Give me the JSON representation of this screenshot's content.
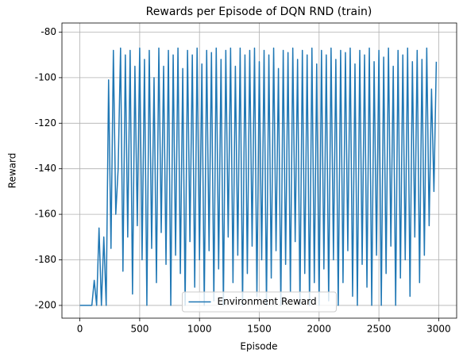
{
  "chart_data": {
    "type": "line",
    "title": "Rewards per Episode of DQN RND (train)",
    "xlabel": "Episode",
    "ylabel": "Reward",
    "x": [
      0,
      20,
      40,
      60,
      80,
      100,
      120,
      140,
      160,
      180,
      200,
      220,
      240,
      260,
      280,
      300,
      320,
      340,
      360,
      380,
      400,
      420,
      440,
      460,
      480,
      500,
      520,
      540,
      560,
      580,
      600,
      620,
      640,
      660,
      680,
      700,
      720,
      740,
      760,
      780,
      800,
      820,
      840,
      860,
      880,
      900,
      920,
      940,
      960,
      980,
      1000,
      1020,
      1040,
      1060,
      1080,
      1100,
      1120,
      1140,
      1160,
      1180,
      1200,
      1220,
      1240,
      1260,
      1280,
      1300,
      1320,
      1340,
      1360,
      1380,
      1400,
      1420,
      1440,
      1460,
      1480,
      1500,
      1520,
      1540,
      1560,
      1580,
      1600,
      1620,
      1640,
      1660,
      1680,
      1700,
      1720,
      1740,
      1760,
      1780,
      1800,
      1820,
      1840,
      1860,
      1880,
      1900,
      1920,
      1940,
      1960,
      1980,
      2000,
      2020,
      2040,
      2060,
      2080,
      2100,
      2120,
      2140,
      2160,
      2180,
      2200,
      2220,
      2240,
      2260,
      2280,
      2300,
      2320,
      2340,
      2360,
      2380,
      2400,
      2420,
      2440,
      2460,
      2480,
      2500,
      2520,
      2540,
      2560,
      2580,
      2600,
      2620,
      2640,
      2660,
      2680,
      2700,
      2720,
      2740,
      2760,
      2780,
      2800,
      2820,
      2840,
      2860,
      2880,
      2900,
      2920,
      2940,
      2960,
      2980
    ],
    "series": [
      {
        "name": "Environment Reward",
        "color": "#1f77b4",
        "values": [
          -200,
          -200,
          -200,
          -200,
          -200,
          -200,
          -189,
          -200,
          -166,
          -200,
          -170,
          -200,
          -101,
          -175,
          -88,
          -160,
          -140,
          -87,
          -185,
          -90,
          -170,
          -88,
          -195,
          -95,
          -165,
          -87,
          -180,
          -92,
          -200,
          -88,
          -175,
          -100,
          -190,
          -87,
          -168,
          -95,
          -182,
          -88,
          -200,
          -90,
          -178,
          -87,
          -186,
          -96,
          -200,
          -88,
          -172,
          -90,
          -192,
          -87,
          -180,
          -94,
          -200,
          -88,
          -176,
          -89,
          -198,
          -87,
          -184,
          -92,
          -200,
          -88,
          -170,
          -87,
          -190,
          -95,
          -178,
          -87,
          -200,
          -90,
          -186,
          -88,
          -174,
          -87,
          -196,
          -93,
          -180,
          -88,
          -200,
          -90,
          -188,
          -87,
          -176,
          -96,
          -200,
          -88,
          -182,
          -89,
          -194,
          -87,
          -172,
          -92,
          -200,
          -88,
          -186,
          -90,
          -200,
          -87,
          -190,
          -94,
          -200,
          -88,
          -184,
          -90,
          -198,
          -87,
          -180,
          -92,
          -200,
          -88,
          -190,
          -89,
          -176,
          -87,
          -196,
          -94,
          -200,
          -88,
          -182,
          -90,
          -192,
          -87,
          -200,
          -93,
          -178,
          -88,
          -200,
          -91,
          -186,
          -87,
          -174,
          -95,
          -200,
          -88,
          -188,
          -90,
          -180,
          -87,
          -196,
          -93,
          -170,
          -88,
          -190,
          -92,
          -178,
          -87,
          -165,
          -105,
          -150,
          -93
        ]
      }
    ],
    "xlim": [
      -150,
      3150
    ],
    "ylim": [
      -205.6,
      -76
    ],
    "xticks": [
      0,
      500,
      1000,
      1500,
      2000,
      2500,
      3000
    ],
    "yticks": [
      -200,
      -180,
      -160,
      -140,
      -120,
      -100,
      -80
    ],
    "grid": true,
    "legend": "lower center"
  }
}
